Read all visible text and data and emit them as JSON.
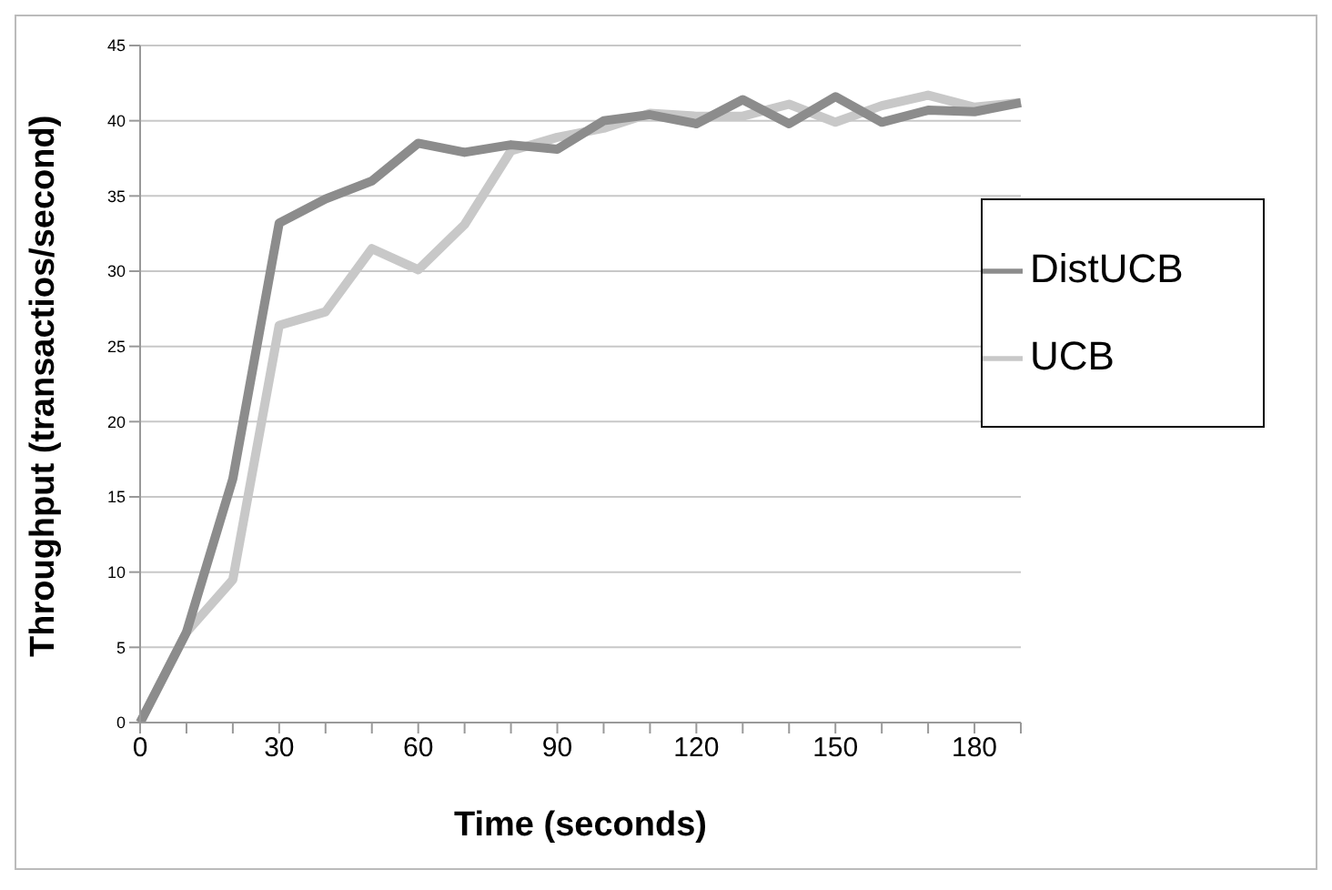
{
  "chart_data": {
    "type": "line",
    "xlabel": "Time (seconds)",
    "ylabel": "Throughput (transactios/second)",
    "categories": [
      "0",
      null,
      null,
      "30",
      null,
      null,
      "60",
      null,
      null,
      "90",
      null,
      null,
      "120",
      null,
      null,
      "150",
      null,
      null,
      "180",
      null
    ],
    "series": [
      {
        "name": "UCB",
        "color": "#c8c8c8",
        "values": [
          0,
          6,
          9.5,
          26.4,
          27.3,
          31.5,
          30.1,
          33.1,
          38,
          38.9,
          39.5,
          40.5,
          40.3,
          40.3,
          41.1,
          39.9,
          41,
          41.7,
          40.9,
          41.2
        ]
      },
      {
        "name": "DistUCB",
        "color": "#8c8c8c",
        "values": [
          0,
          6,
          16.2,
          33.2,
          34.8,
          36,
          38.5,
          37.9,
          38.4,
          38.1,
          40,
          40.4,
          39.8,
          41.4,
          39.8,
          41.6,
          39.9,
          40.7,
          40.6,
          41.2
        ]
      }
    ],
    "ylim": [
      0,
      45
    ],
    "yticks": [
      0,
      5,
      10,
      15,
      20,
      25,
      30,
      35,
      40,
      45
    ],
    "grid": "y",
    "legend": "right",
    "marker": "none",
    "line_style": "solid"
  }
}
